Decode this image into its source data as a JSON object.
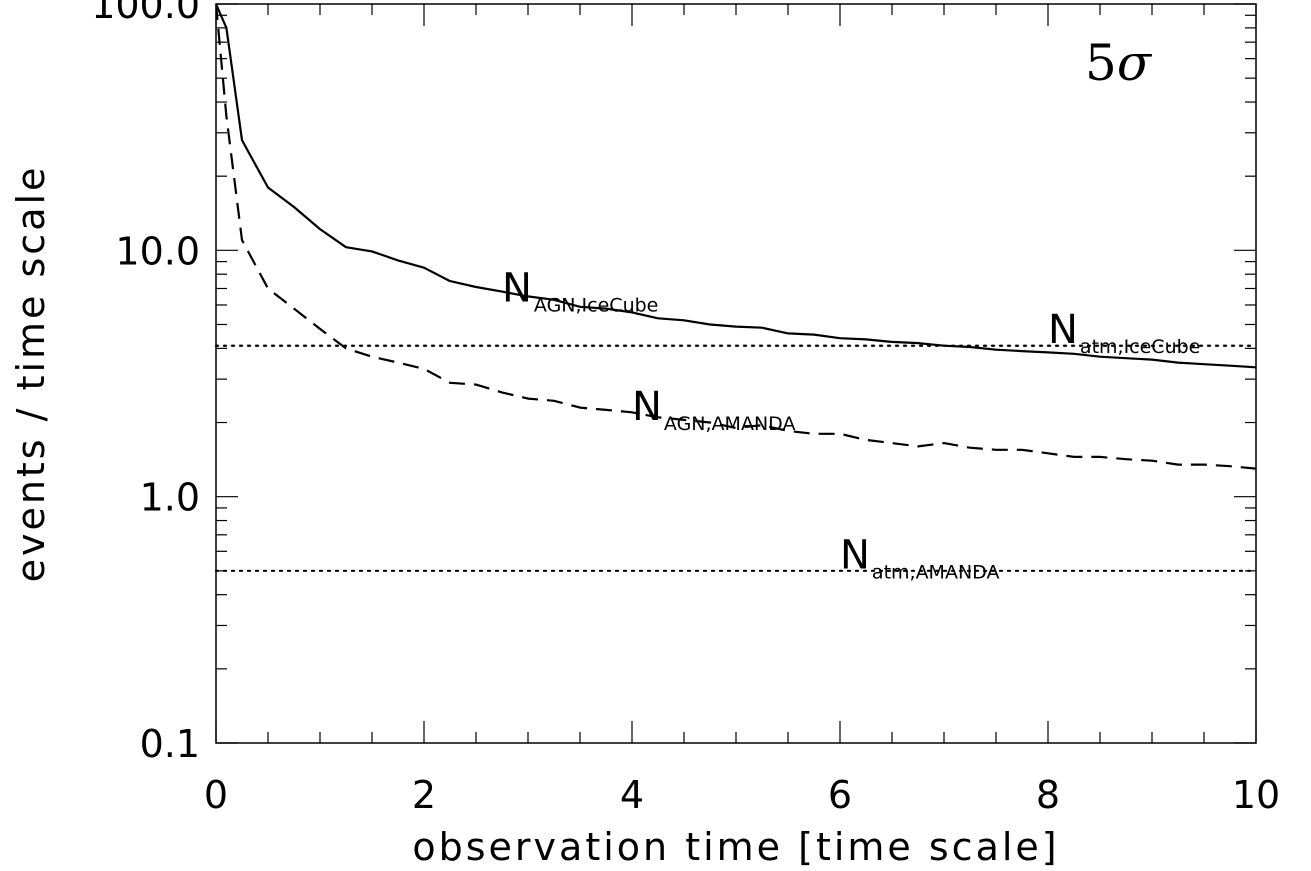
{
  "chart_data": {
    "type": "line",
    "title": "",
    "xlabel": "observation time [time scale]",
    "ylabel": "events / time scale",
    "xlim": [
      0,
      10
    ],
    "ylim": [
      0.1,
      100
    ],
    "yscale": "log",
    "grid": false,
    "xticks": [
      0,
      2,
      4,
      6,
      8,
      10
    ],
    "xtick_labels": [
      "0",
      "2",
      "4",
      "6",
      "8",
      "10"
    ],
    "yticks": [
      0.1,
      1.0,
      10.0,
      100.0
    ],
    "ytick_labels": [
      "0.1",
      "1.0",
      "10.0",
      "100.0"
    ],
    "corner_label": {
      "main": "5",
      "symbol": "σ"
    },
    "series": [
      {
        "style": "solid",
        "x": [
          0.0,
          0.1,
          0.25,
          0.5,
          0.75,
          1.0,
          1.25,
          1.5,
          1.75,
          2.0,
          2.25,
          2.5,
          2.75,
          3.0,
          3.25,
          3.5,
          3.75,
          4.0,
          4.25,
          4.5,
          4.75,
          5.0,
          5.25,
          5.5,
          5.75,
          6.0,
          6.25,
          6.5,
          6.75,
          7.0,
          7.25,
          7.5,
          7.75,
          8.0,
          8.25,
          8.5,
          8.75,
          9.0,
          9.25,
          9.5,
          9.75,
          10.0
        ],
        "y": [
          100,
          80,
          28,
          18,
          15,
          12.2,
          10.3,
          9.9,
          9.1,
          8.5,
          7.5,
          7.1,
          6.8,
          6.5,
          6.3,
          5.9,
          5.8,
          5.6,
          5.3,
          5.2,
          5.0,
          4.9,
          4.85,
          4.6,
          4.55,
          4.4,
          4.35,
          4.25,
          4.2,
          4.1,
          4.05,
          3.95,
          3.9,
          3.85,
          3.8,
          3.7,
          3.65,
          3.6,
          3.5,
          3.45,
          3.4,
          3.35
        ]
      },
      {
        "style": "dashed",
        "x": [
          0.0,
          0.1,
          0.25,
          0.5,
          0.75,
          1.0,
          1.25,
          1.5,
          1.75,
          2.0,
          2.25,
          2.5,
          2.75,
          3.0,
          3.25,
          3.5,
          3.75,
          4.0,
          4.25,
          4.5,
          4.75,
          5.0,
          5.25,
          5.5,
          5.75,
          6.0,
          6.25,
          6.5,
          6.75,
          7.0,
          7.25,
          7.5,
          7.75,
          8.0,
          8.25,
          8.5,
          8.75,
          9.0,
          9.25,
          9.5,
          9.75,
          10.0
        ],
        "y": [
          100,
          35,
          11,
          7.0,
          5.8,
          4.8,
          4.0,
          3.7,
          3.5,
          3.3,
          2.9,
          2.85,
          2.65,
          2.5,
          2.45,
          2.3,
          2.25,
          2.2,
          2.1,
          2.05,
          2.0,
          1.9,
          1.95,
          1.85,
          1.8,
          1.8,
          1.7,
          1.65,
          1.6,
          1.65,
          1.58,
          1.55,
          1.55,
          1.5,
          1.45,
          1.45,
          1.42,
          1.4,
          1.35,
          1.35,
          1.33,
          1.3
        ]
      }
    ],
    "reference_lines": [
      {
        "style": "dotted",
        "y": 4.1
      },
      {
        "style": "dotted",
        "y": 0.5
      }
    ],
    "annotations": [
      {
        "main": "N",
        "sub": "AGN,IceCube",
        "x": 2.75,
        "y": 6.2
      },
      {
        "main": "N",
        "sub": "atm,IceCube",
        "x": 8.0,
        "y": 4.2
      },
      {
        "main": "N",
        "sub": "AGN,AMANDA",
        "x": 4.0,
        "y": 2.05
      },
      {
        "main": "N",
        "sub": "atm,AMANDA",
        "x": 6.0,
        "y": 0.51
      }
    ]
  }
}
